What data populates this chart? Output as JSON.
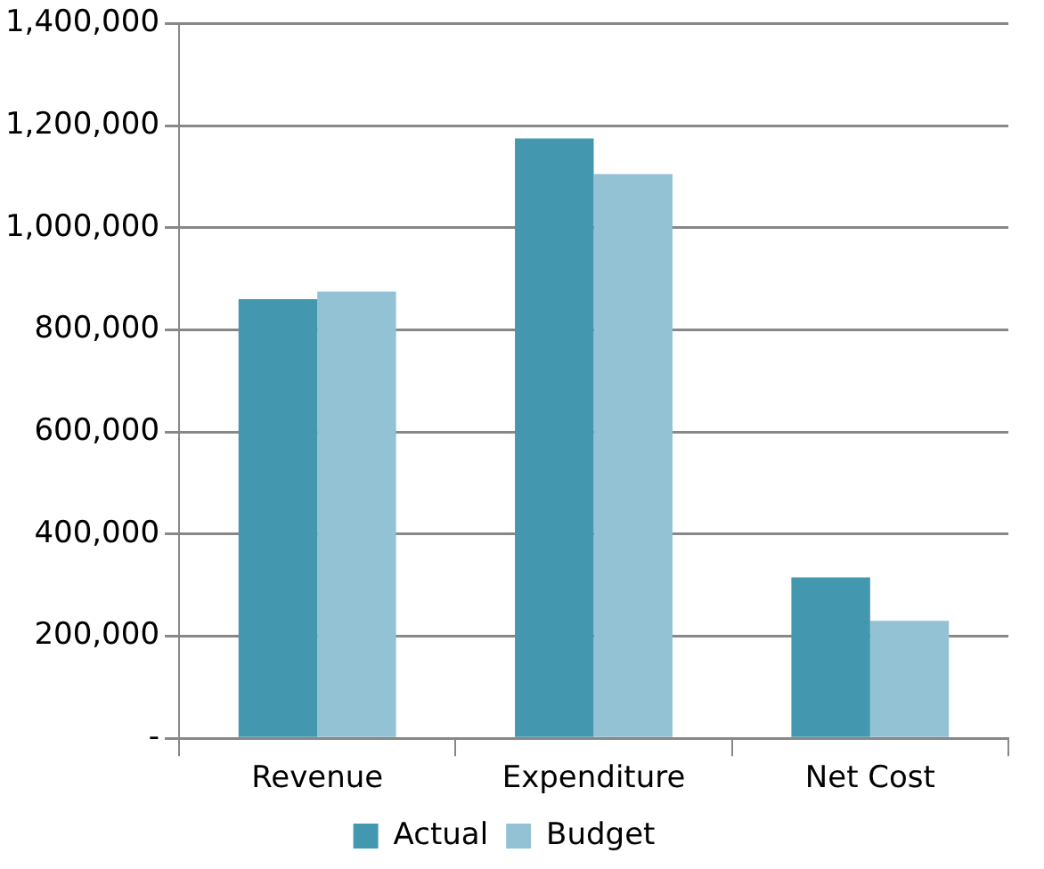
{
  "chart_data": {
    "type": "bar",
    "categories": [
      "Revenue",
      "Expenditure",
      "Net Cost"
    ],
    "series": [
      {
        "name": "Actual",
        "color": "#4398b0",
        "values": [
          860000,
          1175000,
          315000
        ]
      },
      {
        "name": "Budget",
        "color": "#93c2d4",
        "values": [
          875000,
          1105000,
          230000
        ]
      }
    ],
    "ylim": [
      0,
      1400000
    ],
    "yticks": [
      {
        "value": 0,
        "label": "-"
      },
      {
        "value": 200000,
        "label": "200,000"
      },
      {
        "value": 400000,
        "label": "400,000"
      },
      {
        "value": 600000,
        "label": "600,000"
      },
      {
        "value": 800000,
        "label": "800,000"
      },
      {
        "value": 1000000,
        "label": "1,000,000"
      },
      {
        "value": 1200000,
        "label": "1,200,000"
      },
      {
        "value": 1400000,
        "label": "1,400,000"
      }
    ],
    "grid": "y",
    "legend": "bottom"
  }
}
